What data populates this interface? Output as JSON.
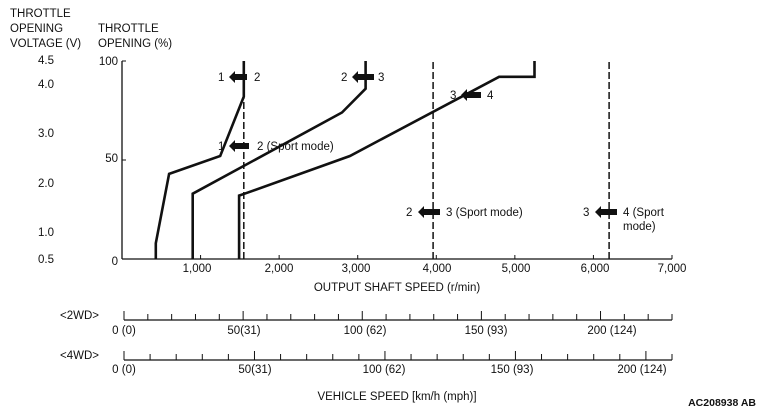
{
  "chart_data": {
    "type": "line",
    "title": "",
    "left_axis_title_v": [
      "THROTTLE",
      "OPENING",
      "VOLTAGE (V)"
    ],
    "left_axis_title_pct": [
      "THROTTLE",
      "OPENING (%)"
    ],
    "voltage_ticks": [
      "4.5",
      "4.0",
      "3.0",
      "2.0",
      "1.0",
      "0.5"
    ],
    "voltage_values": [
      4.5,
      4.0,
      3.0,
      2.0,
      1.0,
      0.5
    ],
    "pct_ticks": [
      "100",
      "50",
      "0"
    ],
    "pct_values": [
      100,
      50,
      0
    ],
    "xlabel": "OUTPUT SHAFT SPEED (r/min)",
    "xlim": [
      0,
      7000
    ],
    "ylim": [
      0,
      100
    ],
    "x_ticks": [
      "1,000",
      "2,000",
      "3,000",
      "4,000",
      "5,000",
      "6,000",
      "7,000"
    ],
    "x_tick_values": [
      1000,
      2000,
      3000,
      4000,
      5000,
      6000,
      7000
    ],
    "series": [
      {
        "name": "1 → 2 (normal)",
        "style": "solid",
        "x": [
          1550,
          1550,
          1250,
          600,
          430,
          430
        ],
        "y": [
          100,
          82,
          52,
          43,
          8,
          0
        ]
      },
      {
        "name": "2 → 3 (normal)",
        "style": "solid",
        "x": [
          3100,
          3100,
          2800,
          900,
          900
        ],
        "y": [
          100,
          86,
          74,
          33,
          0
        ]
      },
      {
        "name": "3 → 4 (normal)",
        "style": "solid",
        "x": [
          5250,
          5250,
          4800,
          2900,
          1560,
          1490,
          1490
        ],
        "y": [
          100,
          92,
          92,
          52,
          33,
          32,
          0
        ]
      },
      {
        "name": "1 → 2 (Sport mode)",
        "style": "dashed",
        "x": [
          1550,
          1550
        ],
        "y": [
          0,
          100
        ]
      },
      {
        "name": "2 → 3 (Sport mode)",
        "style": "dashed",
        "x": [
          3960,
          3960
        ],
        "y": [
          0,
          100
        ]
      },
      {
        "name": "3 → 4 (Sport mode)",
        "style": "dashed",
        "x": [
          6200,
          6200
        ],
        "y": [
          0,
          100
        ]
      }
    ],
    "annotations": [
      {
        "from": "1",
        "to": "2",
        "x": 1550,
        "y": 92
      },
      {
        "from": "2",
        "to": "3",
        "x": 3110,
        "y": 92
      },
      {
        "from": "3",
        "to": "4",
        "x": 4360,
        "y": 84
      },
      {
        "from": "1",
        "to": "2 (Sport mode)",
        "x": 1550,
        "y": 58
      },
      {
        "from": "2",
        "to": "3 (Sport mode)",
        "x": 3960,
        "y": 25
      },
      {
        "from": "3",
        "to": "4 (Sport",
        "to2": "mode)",
        "x": 6200,
        "y": 25
      }
    ],
    "speed_scales": [
      {
        "label": "<2WD>",
        "max_kmh": 230,
        "ticks": [
          "0 (0)",
          "50(31)",
          "100 (62)",
          "150 (93)",
          "200 (124)"
        ],
        "tick_kmh": [
          0,
          50,
          100,
          150,
          200
        ]
      },
      {
        "label": "<4WD>",
        "max_kmh": 210,
        "ticks": [
          "0 (0)",
          "50(31)",
          "100 (62)",
          "150 (93)",
          "200 (124)"
        ],
        "tick_kmh": [
          0,
          50,
          100,
          150,
          200
        ]
      }
    ],
    "speed_axis_label": "VEHICLE SPEED [km/h (mph)]",
    "figure_code": "AC208938 AB"
  }
}
